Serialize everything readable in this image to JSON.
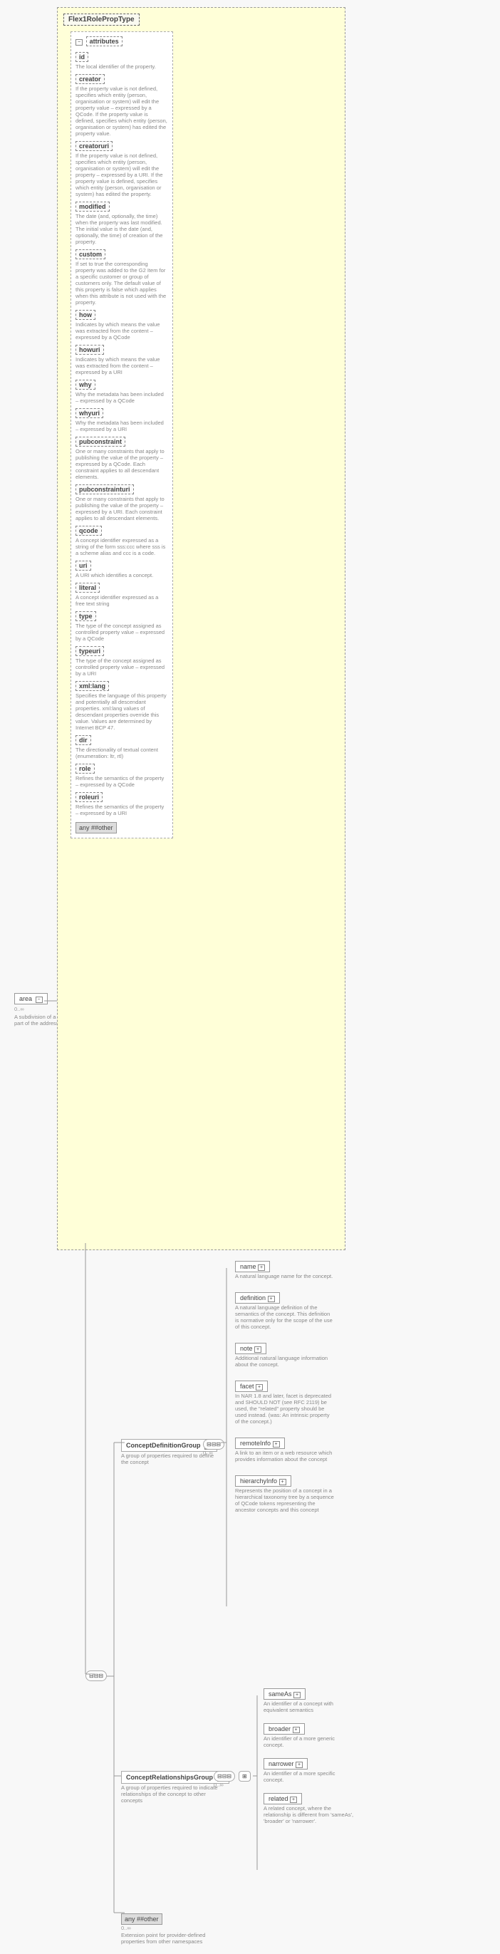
{
  "mainTitle": "Flex1RolePropType",
  "attrsLabel": "attributes",
  "attributes": [
    {
      "name": "id",
      "desc": "The local identifier of the property."
    },
    {
      "name": "creator",
      "desc": "If the property value is not defined, specifies which entity (person, organisation or system) will edit the property value – expressed by a QCode. If the property value is defined, specifies which entity (person, organisation or system) has edited the property value."
    },
    {
      "name": "creatoruri",
      "desc": "If the property value is not defined, specifies which entity (person, organisation or system) will edit the property – expressed by a URI. If the property value is defined, specifies which entity (person, organisation or system) has edited the property."
    },
    {
      "name": "modified",
      "desc": "The date (and, optionally, the time) when the property was last modified. The initial value is the date (and, optionally, the time) of creation of the property."
    },
    {
      "name": "custom",
      "desc": "If set to true the corresponding property was added to the G2 Item for a specific customer or group of customers only. The default value of this property is false which applies when this attribute is not used with the property."
    },
    {
      "name": "how",
      "desc": "Indicates by which means the value was extracted from the content – expressed by a QCode"
    },
    {
      "name": "howuri",
      "desc": "Indicates by which means the value was extracted from the content – expressed by a URI"
    },
    {
      "name": "why",
      "desc": "Why the metadata has been included – expressed by a QCode"
    },
    {
      "name": "whyuri",
      "desc": "Why the metadata has been included – expressed by a URI"
    },
    {
      "name": "pubconstraint",
      "desc": "One or many constraints that apply to publishing the value of the property – expressed by a QCode. Each constraint applies to all descendant elements."
    },
    {
      "name": "pubconstrainturi",
      "desc": "One or many constraints that apply to publishing the value of the property – expressed by a URI. Each constraint applies to all descendant elements."
    },
    {
      "name": "qcode",
      "desc": "A concept identifier expressed as a string of the form sss:ccc where sss is a scheme alias and ccc is a code."
    },
    {
      "name": "uri",
      "desc": "A URI which identifies a concept."
    },
    {
      "name": "literal",
      "desc": "A concept identifier expressed as a free text string"
    },
    {
      "name": "type",
      "desc": "The type of the concept assigned as controlled property value – expressed by a QCode"
    },
    {
      "name": "typeuri",
      "desc": "The type of the concept assigned as controlled property value – expressed by a URI"
    },
    {
      "name": "xml:lang",
      "desc": "Specifies the language of this property and potentially all descendant properties. xml:lang values of descendant properties override this value. Values are determined by Internet BCP 47."
    },
    {
      "name": "dir",
      "desc": "The directionality of textual content (enumeration: ltr, rtl)"
    },
    {
      "name": "role",
      "desc": "Refines the semantics of the property – expressed by a QCode"
    },
    {
      "name": "roleuri",
      "desc": "Refines the semantics of the property – expressed by a URI"
    }
  ],
  "anyOther": "any ##other",
  "area": {
    "label": "area",
    "card": "0..∞",
    "desc": "A subdivision of a country part of the address."
  },
  "groups": {
    "def": {
      "label": "ConceptDefinitionGroup",
      "desc": "A group of properties required to define the concept",
      "card": "0..∞"
    },
    "rel": {
      "label": "ConceptRelationshipsGroup",
      "desc": "A group of properties required to indicate relationships of the concept to other concepts",
      "card": "0..∞"
    }
  },
  "defElems": [
    {
      "label": "name",
      "desc": "A natural language name for the concept."
    },
    {
      "label": "definition",
      "desc": "A natural language definition of the semantics of the concept. This definition is normative only for the scope of the use of this concept."
    },
    {
      "label": "note",
      "desc": "Additional natural language information about the concept."
    },
    {
      "label": "facet",
      "desc": "In NAR 1.8 and later, facet is deprecated and SHOULD NOT (see RFC 2119) be used, the \"related\" property should be used instead. (was: An intrinsic property of the concept.)"
    },
    {
      "label": "remoteInfo",
      "desc": "A link to an item or a web resource which provides information about the concept"
    },
    {
      "label": "hierarchyInfo",
      "desc": "Represents the position of a concept in a hierarchical taxonomy tree by a sequence of QCode tokens representing the ancestor concepts and this concept"
    }
  ],
  "relElems": [
    {
      "label": "sameAs",
      "desc": "An identifier of a concept with equivalent semantics"
    },
    {
      "label": "broader",
      "desc": "An identifier of a more generic concept."
    },
    {
      "label": "narrower",
      "desc": "An identifier of a more specific concept."
    },
    {
      "label": "related",
      "desc": "A related concept, where the relationship is different from 'sameAs', 'broader' or 'narrower'."
    }
  ],
  "extPoint": {
    "label": "any ##other",
    "card": "0..∞",
    "desc": "Extension point for provider-defined properties from other namespaces"
  }
}
